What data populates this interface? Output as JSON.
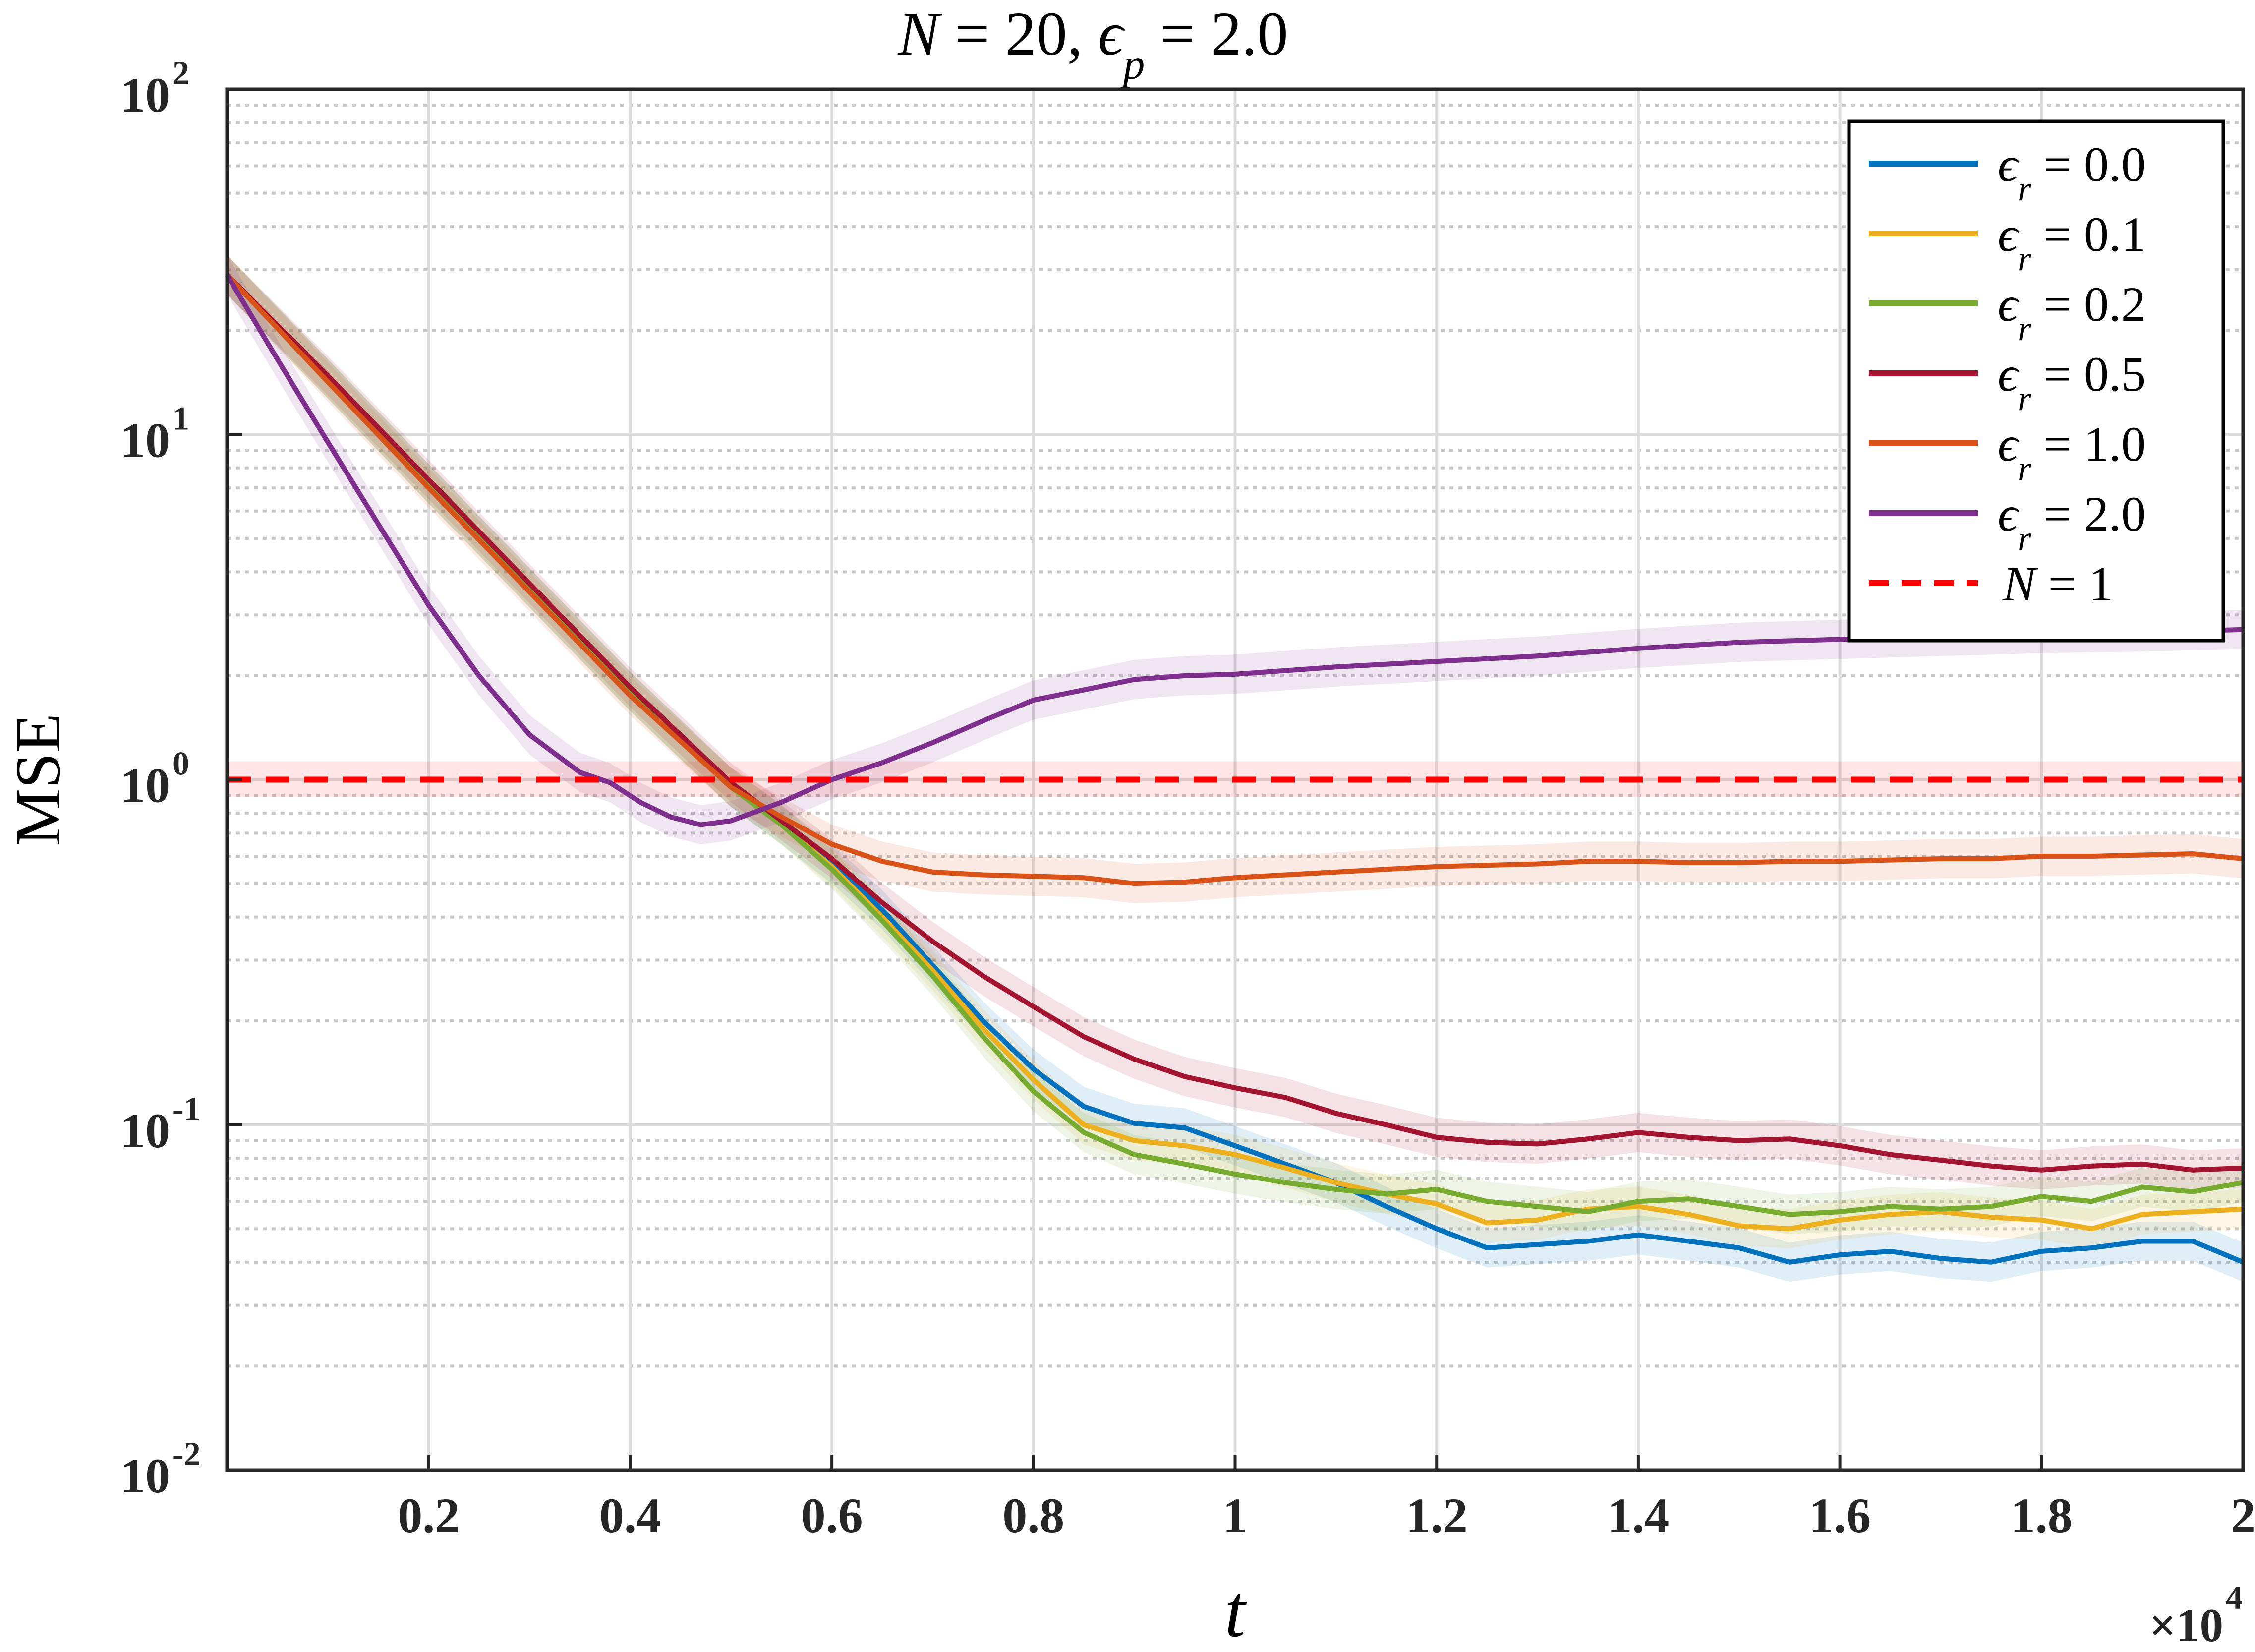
{
  "chart_data": {
    "type": "line",
    "title": "N = 20, ϵp = 2.0",
    "xlabel": "t",
    "ylabel": "MSE",
    "x_multiplier_label": "×10",
    "x_multiplier_exponent": "4",
    "xlim": [
      0,
      2
    ],
    "ylim": [
      0.01,
      100
    ],
    "yscale": "log",
    "grid": true,
    "legend_position": "top-right",
    "x_ticks": [
      {
        "value": 0.2,
        "label": "0.2"
      },
      {
        "value": 0.4,
        "label": "0.4"
      },
      {
        "value": 0.6,
        "label": "0.6"
      },
      {
        "value": 0.8,
        "label": "0.8"
      },
      {
        "value": 1.0,
        "label": "1"
      },
      {
        "value": 1.2,
        "label": "1.2"
      },
      {
        "value": 1.4,
        "label": "1.4"
      },
      {
        "value": 1.6,
        "label": "1.6"
      },
      {
        "value": 1.8,
        "label": "1.8"
      },
      {
        "value": 2.0,
        "label": "2"
      }
    ],
    "y_ticks": [
      {
        "value": 0.01,
        "base": "10",
        "exp": "-2"
      },
      {
        "value": 0.1,
        "base": "10",
        "exp": "-1"
      },
      {
        "value": 1,
        "base": "10",
        "exp": "0"
      },
      {
        "value": 10,
        "base": "10",
        "exp": "1"
      },
      {
        "value": 100,
        "base": "10",
        "exp": "2"
      }
    ],
    "series": [
      {
        "name": "ϵr = 0.0",
        "color": "#0072BD",
        "x": [
          0,
          0.1,
          0.2,
          0.3,
          0.4,
          0.5,
          0.55,
          0.6,
          0.65,
          0.7,
          0.75,
          0.8,
          0.85,
          0.9,
          0.95,
          1.0,
          1.05,
          1.1,
          1.15,
          1.2,
          1.25,
          1.3,
          1.35,
          1.4,
          1.45,
          1.5,
          1.55,
          1.6,
          1.65,
          1.7,
          1.75,
          1.8,
          1.85,
          1.9,
          1.95,
          2.0
        ],
        "y": [
          29,
          14.5,
          7.2,
          3.6,
          1.8,
          0.95,
          0.74,
          0.57,
          0.42,
          0.29,
          0.2,
          0.145,
          0.113,
          0.101,
          0.098,
          0.087,
          0.077,
          0.068,
          0.058,
          0.05,
          0.044,
          0.045,
          0.046,
          0.048,
          0.046,
          0.044,
          0.04,
          0.042,
          0.043,
          0.041,
          0.04,
          0.043,
          0.044,
          0.046,
          0.046,
          0.04
        ]
      },
      {
        "name": "ϵr = 0.1",
        "color": "#EDB120",
        "x": [
          0,
          0.1,
          0.2,
          0.3,
          0.4,
          0.5,
          0.55,
          0.6,
          0.65,
          0.7,
          0.75,
          0.8,
          0.85,
          0.9,
          0.95,
          1.0,
          1.05,
          1.1,
          1.15,
          1.2,
          1.25,
          1.3,
          1.35,
          1.4,
          1.45,
          1.5,
          1.55,
          1.6,
          1.65,
          1.7,
          1.75,
          1.8,
          1.85,
          1.9,
          1.95,
          2.0
        ],
        "y": [
          29,
          14.5,
          7.2,
          3.6,
          1.8,
          0.95,
          0.74,
          0.56,
          0.4,
          0.28,
          0.19,
          0.135,
          0.1,
          0.09,
          0.087,
          0.082,
          0.075,
          0.068,
          0.063,
          0.059,
          0.052,
          0.053,
          0.057,
          0.058,
          0.055,
          0.051,
          0.05,
          0.053,
          0.055,
          0.056,
          0.054,
          0.053,
          0.05,
          0.055,
          0.056,
          0.057
        ]
      },
      {
        "name": "ϵr = 0.2",
        "color": "#77AC30",
        "x": [
          0,
          0.1,
          0.2,
          0.3,
          0.4,
          0.5,
          0.55,
          0.6,
          0.65,
          0.7,
          0.75,
          0.8,
          0.85,
          0.9,
          0.95,
          1.0,
          1.05,
          1.1,
          1.15,
          1.2,
          1.25,
          1.3,
          1.35,
          1.4,
          1.45,
          1.5,
          1.55,
          1.6,
          1.65,
          1.7,
          1.75,
          1.8,
          1.85,
          1.9,
          1.95,
          2.0
        ],
        "y": [
          29,
          14.5,
          7.2,
          3.6,
          1.8,
          0.95,
          0.74,
          0.55,
          0.39,
          0.27,
          0.18,
          0.125,
          0.095,
          0.082,
          0.077,
          0.072,
          0.068,
          0.065,
          0.063,
          0.065,
          0.06,
          0.058,
          0.056,
          0.06,
          0.061,
          0.058,
          0.055,
          0.056,
          0.058,
          0.057,
          0.058,
          0.062,
          0.06,
          0.066,
          0.064,
          0.068
        ]
      },
      {
        "name": "ϵr = 0.5",
        "color": "#A2142F",
        "x": [
          0,
          0.1,
          0.2,
          0.3,
          0.4,
          0.5,
          0.55,
          0.6,
          0.65,
          0.7,
          0.75,
          0.8,
          0.85,
          0.9,
          0.95,
          1.0,
          1.05,
          1.1,
          1.15,
          1.2,
          1.25,
          1.3,
          1.35,
          1.4,
          1.45,
          1.5,
          1.55,
          1.6,
          1.65,
          1.7,
          1.75,
          1.8,
          1.85,
          1.9,
          1.95,
          2.0
        ],
        "y": [
          29,
          14.8,
          7.4,
          3.7,
          1.85,
          0.98,
          0.76,
          0.59,
          0.44,
          0.34,
          0.27,
          0.22,
          0.18,
          0.155,
          0.138,
          0.128,
          0.12,
          0.108,
          0.1,
          0.092,
          0.089,
          0.088,
          0.091,
          0.095,
          0.092,
          0.09,
          0.091,
          0.087,
          0.082,
          0.079,
          0.076,
          0.074,
          0.076,
          0.077,
          0.074,
          0.075
        ]
      },
      {
        "name": "ϵr = 1.0",
        "color": "#D95319",
        "x": [
          0,
          0.1,
          0.2,
          0.3,
          0.4,
          0.5,
          0.55,
          0.6,
          0.65,
          0.7,
          0.75,
          0.8,
          0.85,
          0.9,
          0.95,
          1.0,
          1.05,
          1.1,
          1.15,
          1.2,
          1.25,
          1.3,
          1.35,
          1.4,
          1.45,
          1.5,
          1.55,
          1.6,
          1.65,
          1.7,
          1.75,
          1.8,
          1.85,
          1.9,
          1.95,
          2.0
        ],
        "y": [
          29,
          14.2,
          7.0,
          3.5,
          1.75,
          0.95,
          0.78,
          0.65,
          0.58,
          0.54,
          0.53,
          0.525,
          0.52,
          0.5,
          0.505,
          0.52,
          0.53,
          0.54,
          0.55,
          0.56,
          0.565,
          0.57,
          0.58,
          0.58,
          0.575,
          0.575,
          0.58,
          0.58,
          0.585,
          0.59,
          0.59,
          0.6,
          0.6,
          0.605,
          0.61,
          0.59
        ]
      },
      {
        "name": "ϵr = 2.0",
        "color": "#7E2F8E",
        "x": [
          0,
          0.05,
          0.1,
          0.15,
          0.2,
          0.25,
          0.3,
          0.35,
          0.38,
          0.41,
          0.44,
          0.47,
          0.5,
          0.55,
          0.6,
          0.65,
          0.7,
          0.75,
          0.8,
          0.85,
          0.9,
          0.95,
          1.0,
          1.1,
          1.2,
          1.3,
          1.4,
          1.5,
          1.6,
          1.7,
          1.8,
          1.9,
          2.0
        ],
        "y": [
          29,
          16.5,
          9.5,
          5.5,
          3.2,
          2.0,
          1.35,
          1.05,
          0.98,
          0.86,
          0.78,
          0.74,
          0.76,
          0.86,
          1.0,
          1.12,
          1.28,
          1.48,
          1.7,
          1.82,
          1.95,
          2.0,
          2.02,
          2.12,
          2.2,
          2.28,
          2.4,
          2.5,
          2.55,
          2.6,
          2.65,
          2.68,
          2.72
        ]
      },
      {
        "name": "N = 1",
        "color": "#FF0000",
        "dashed": true,
        "x": [
          0,
          2
        ],
        "y": [
          1.0,
          1.0
        ]
      }
    ]
  }
}
